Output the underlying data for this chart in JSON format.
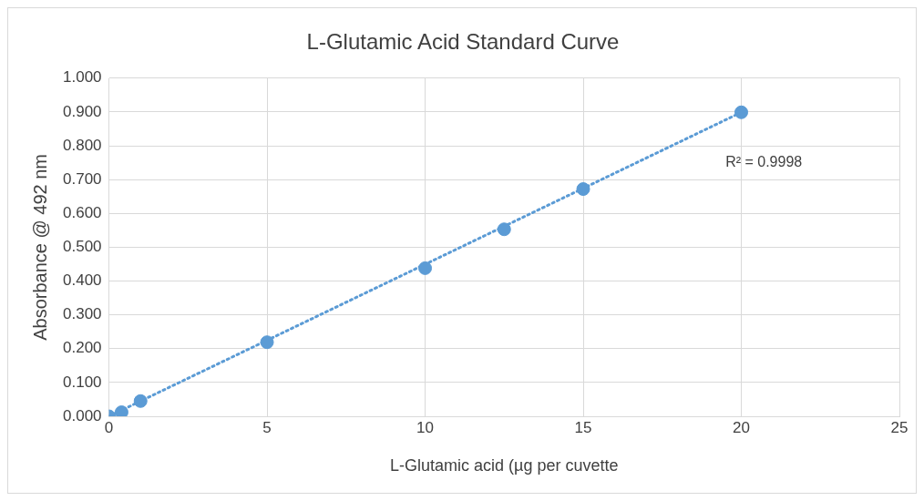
{
  "chart_data": {
    "type": "scatter",
    "title": "L-Glutamic Acid Standard Curve",
    "xlabel": "L-Glutamic acid (µg per cuvette",
    "ylabel": "Absorbance @ 492 nm",
    "x": [
      0,
      0.4,
      1,
      5,
      10,
      12.5,
      15,
      20
    ],
    "series": [
      {
        "type": "scatter",
        "color": "#5b9bd5",
        "marker": "circle",
        "values": [
          0.0,
          0.012,
          0.045,
          0.219,
          0.438,
          0.553,
          0.672,
          0.899
        ]
      },
      {
        "type": "line",
        "color": "#5b9bd5",
        "marker": "none",
        "line_style": "dotted",
        "x": [
          0,
          20
        ],
        "values": [
          0.0,
          0.899
        ]
      }
    ],
    "xlim": [
      0,
      25
    ],
    "xticks": [
      0,
      5,
      10,
      15,
      20,
      25
    ],
    "ylim": [
      0,
      1
    ],
    "yticks": [
      {
        "value": 0,
        "label": "0.000"
      },
      {
        "value": 0.1,
        "label": "0.100"
      },
      {
        "value": 0.2,
        "label": "0.200"
      },
      {
        "value": 0.3,
        "label": "0.300"
      },
      {
        "value": 0.4,
        "label": "0.400"
      },
      {
        "value": 0.5,
        "label": "0.500"
      },
      {
        "value": 0.6,
        "label": "0.600"
      },
      {
        "value": 0.7,
        "label": "0.700"
      },
      {
        "value": 0.8,
        "label": "0.800"
      },
      {
        "value": 0.9,
        "label": "0.900"
      },
      {
        "value": 1,
        "label": "1.000"
      }
    ],
    "grid": true,
    "legend": false,
    "annotations": [
      "R² = 0.9998"
    ]
  }
}
